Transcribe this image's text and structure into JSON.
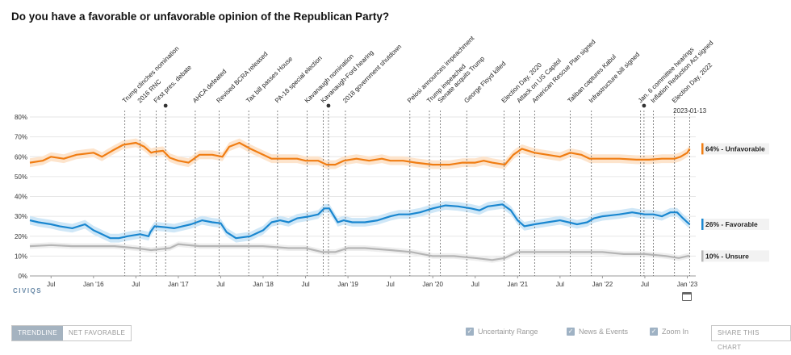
{
  "title": "Do you have a favorable or unfavorable opinion of the Republican Party?",
  "brand": "CIVIQS",
  "controls": {
    "tabs": [
      "TRENDLINE",
      "NET FAVORABLE"
    ],
    "options": [
      "Uncertainty Range",
      "News & Events",
      "Zoom In"
    ],
    "share": "SHARE THIS CHART"
  },
  "chart_data": {
    "type": "line",
    "title": "Do you have a favorable or unfavorable opinion of the Republican Party?",
    "x_range": [
      2015.25,
      2023.1
    ],
    "ylim": [
      0,
      80
    ],
    "y_ticks": [
      "0%",
      "10%",
      "20%",
      "30%",
      "40%",
      "50%",
      "60%",
      "70%",
      "80%"
    ],
    "x_ticks": [
      {
        "label": "Jul",
        "x": 2015.5
      },
      {
        "label": "Jan '16",
        "x": 2016.0
      },
      {
        "label": "Jul",
        "x": 2016.5
      },
      {
        "label": "Jan '17",
        "x": 2017.0
      },
      {
        "label": "Jul",
        "x": 2017.5
      },
      {
        "label": "Jan '18",
        "x": 2018.0
      },
      {
        "label": "Jul",
        "x": 2018.5
      },
      {
        "label": "Jan '19",
        "x": 2019.0
      },
      {
        "label": "Jul",
        "x": 2019.5
      },
      {
        "label": "Jan '20",
        "x": 2020.0
      },
      {
        "label": "Jul",
        "x": 2020.5
      },
      {
        "label": "Jan '21",
        "x": 2021.0
      },
      {
        "label": "Jul",
        "x": 2021.5
      },
      {
        "label": "Jan '22",
        "x": 2022.0
      },
      {
        "label": "Jul",
        "x": 2022.5
      },
      {
        "label": "Jan '23",
        "x": 2023.0
      }
    ],
    "date_label": {
      "x": 2023.03,
      "text": "2023-01-13"
    },
    "series": [
      {
        "name": "Unfavorable",
        "color": "#f07d13",
        "band_color": "#fde4cc",
        "band": 2.2,
        "end_label": "64% - Unfavorable",
        "points": [
          [
            2015.25,
            57
          ],
          [
            2015.4,
            58
          ],
          [
            2015.5,
            60
          ],
          [
            2015.65,
            59
          ],
          [
            2015.8,
            61
          ],
          [
            2016.0,
            62
          ],
          [
            2016.1,
            60
          ],
          [
            2016.22,
            63
          ],
          [
            2016.35,
            66
          ],
          [
            2016.5,
            67
          ],
          [
            2016.6,
            65
          ],
          [
            2016.68,
            62
          ],
          [
            2016.72,
            62.5
          ],
          [
            2016.82,
            63
          ],
          [
            2016.9,
            59.5
          ],
          [
            2017.0,
            58
          ],
          [
            2017.12,
            57
          ],
          [
            2017.25,
            61
          ],
          [
            2017.4,
            61
          ],
          [
            2017.52,
            60
          ],
          [
            2017.6,
            65
          ],
          [
            2017.72,
            67
          ],
          [
            2017.85,
            64
          ],
          [
            2018.0,
            61
          ],
          [
            2018.1,
            59
          ],
          [
            2018.25,
            59
          ],
          [
            2018.4,
            59
          ],
          [
            2018.5,
            58
          ],
          [
            2018.65,
            58
          ],
          [
            2018.75,
            56
          ],
          [
            2018.85,
            56
          ],
          [
            2018.95,
            58
          ],
          [
            2019.1,
            59
          ],
          [
            2019.25,
            58
          ],
          [
            2019.4,
            59
          ],
          [
            2019.5,
            58
          ],
          [
            2019.65,
            58
          ],
          [
            2019.8,
            57
          ],
          [
            2020.0,
            56
          ],
          [
            2020.2,
            56
          ],
          [
            2020.35,
            57
          ],
          [
            2020.5,
            57
          ],
          [
            2020.6,
            58
          ],
          [
            2020.7,
            57
          ],
          [
            2020.85,
            56
          ],
          [
            2020.95,
            61
          ],
          [
            2021.05,
            64
          ],
          [
            2021.2,
            62
          ],
          [
            2021.35,
            61
          ],
          [
            2021.5,
            60
          ],
          [
            2021.62,
            62
          ],
          [
            2021.75,
            61
          ],
          [
            2021.85,
            59
          ],
          [
            2022.0,
            59
          ],
          [
            2022.2,
            59
          ],
          [
            2022.4,
            58.5
          ],
          [
            2022.55,
            58.5
          ],
          [
            2022.7,
            59
          ],
          [
            2022.85,
            59
          ],
          [
            2022.92,
            60
          ],
          [
            2023.0,
            62
          ],
          [
            2023.03,
            64
          ]
        ]
      },
      {
        "name": "Favorable",
        "color": "#1a87d0",
        "band_color": "#cfe7f7",
        "band": 2.2,
        "end_label": "26% - Favorable",
        "points": [
          [
            2015.25,
            28
          ],
          [
            2015.35,
            27
          ],
          [
            2015.5,
            26
          ],
          [
            2015.6,
            25
          ],
          [
            2015.75,
            24
          ],
          [
            2015.9,
            26
          ],
          [
            2016.0,
            23
          ],
          [
            2016.1,
            21
          ],
          [
            2016.2,
            19
          ],
          [
            2016.3,
            19
          ],
          [
            2016.4,
            20
          ],
          [
            2016.55,
            21
          ],
          [
            2016.65,
            20
          ],
          [
            2016.67,
            22
          ],
          [
            2016.72,
            25
          ],
          [
            2016.85,
            24.5
          ],
          [
            2016.95,
            24
          ],
          [
            2017.05,
            25
          ],
          [
            2017.15,
            26
          ],
          [
            2017.28,
            28
          ],
          [
            2017.4,
            27
          ],
          [
            2017.5,
            26.5
          ],
          [
            2017.57,
            22
          ],
          [
            2017.68,
            19
          ],
          [
            2017.85,
            20
          ],
          [
            2018.0,
            23
          ],
          [
            2018.1,
            27
          ],
          [
            2018.2,
            28
          ],
          [
            2018.3,
            27
          ],
          [
            2018.4,
            29
          ],
          [
            2018.55,
            30
          ],
          [
            2018.65,
            31
          ],
          [
            2018.72,
            34
          ],
          [
            2018.78,
            34
          ],
          [
            2018.88,
            27
          ],
          [
            2018.95,
            28
          ],
          [
            2019.05,
            27
          ],
          [
            2019.2,
            27
          ],
          [
            2019.35,
            28
          ],
          [
            2019.5,
            30
          ],
          [
            2019.6,
            31
          ],
          [
            2019.72,
            31
          ],
          [
            2019.85,
            32
          ],
          [
            2020.0,
            34
          ],
          [
            2020.15,
            35.5
          ],
          [
            2020.3,
            35
          ],
          [
            2020.45,
            34
          ],
          [
            2020.55,
            33
          ],
          [
            2020.65,
            35
          ],
          [
            2020.82,
            36
          ],
          [
            2020.92,
            33
          ],
          [
            2021.0,
            28
          ],
          [
            2021.08,
            25
          ],
          [
            2021.2,
            26
          ],
          [
            2021.35,
            27
          ],
          [
            2021.5,
            28
          ],
          [
            2021.6,
            27
          ],
          [
            2021.7,
            26
          ],
          [
            2021.82,
            27
          ],
          [
            2021.9,
            29
          ],
          [
            2022.0,
            30
          ],
          [
            2022.2,
            31
          ],
          [
            2022.35,
            32
          ],
          [
            2022.5,
            31
          ],
          [
            2022.6,
            31
          ],
          [
            2022.7,
            30
          ],
          [
            2022.8,
            32
          ],
          [
            2022.88,
            32
          ],
          [
            2022.95,
            29
          ],
          [
            2023.0,
            27
          ],
          [
            2023.03,
            26
          ]
        ]
      },
      {
        "name": "Unsure",
        "color": "#b5b5b5",
        "band_color": "#eeeeee",
        "band": 1.4,
        "end_label": "10% - Unsure",
        "points": [
          [
            2015.25,
            15
          ],
          [
            2015.5,
            15.5
          ],
          [
            2015.75,
            15
          ],
          [
            2016.0,
            15
          ],
          [
            2016.25,
            15
          ],
          [
            2016.5,
            14
          ],
          [
            2016.68,
            13
          ],
          [
            2016.9,
            14
          ],
          [
            2017.0,
            16
          ],
          [
            2017.25,
            15
          ],
          [
            2017.5,
            15
          ],
          [
            2017.75,
            15
          ],
          [
            2018.0,
            15
          ],
          [
            2018.3,
            14
          ],
          [
            2018.5,
            14
          ],
          [
            2018.7,
            12
          ],
          [
            2018.85,
            12
          ],
          [
            2019.0,
            14
          ],
          [
            2019.2,
            14
          ],
          [
            2019.5,
            13
          ],
          [
            2019.75,
            12
          ],
          [
            2020.0,
            10
          ],
          [
            2020.25,
            10
          ],
          [
            2020.5,
            9
          ],
          [
            2020.7,
            8
          ],
          [
            2020.85,
            9
          ],
          [
            2021.0,
            12
          ],
          [
            2021.25,
            12
          ],
          [
            2021.5,
            12
          ],
          [
            2021.75,
            12
          ],
          [
            2022.0,
            12
          ],
          [
            2022.25,
            11
          ],
          [
            2022.5,
            11
          ],
          [
            2022.75,
            10
          ],
          [
            2022.9,
            9
          ],
          [
            2023.0,
            10
          ],
          [
            2023.03,
            10
          ]
        ]
      }
    ],
    "events": [
      {
        "x": 2016.37,
        "label": "Trump clinches nomination"
      },
      {
        "x": 2016.55,
        "label": "2016 RNC"
      },
      {
        "x": 2016.74,
        "label": "First pres. debate"
      },
      {
        "x": 2016.85,
        "label": "",
        "dot": true
      },
      {
        "x": 2017.2,
        "label": "AHCA defeated"
      },
      {
        "x": 2017.48,
        "label": "Revised BCRA released"
      },
      {
        "x": 2017.83,
        "label": "Tax bill passes House"
      },
      {
        "x": 2018.17,
        "label": "PA-18 special election"
      },
      {
        "x": 2018.52,
        "label": "Kavanaugh nomination"
      },
      {
        "x": 2018.71,
        "label": "Kavanaugh-Ford hearing"
      },
      {
        "x": 2018.77,
        "label": "",
        "dot": true
      },
      {
        "x": 2018.97,
        "label": "2018 government shutdown"
      },
      {
        "x": 2019.73,
        "label": "Pelosi announces impeachment"
      },
      {
        "x": 2019.96,
        "label": "Trump impeached"
      },
      {
        "x": 2020.09,
        "label": "Senate acquits Trump"
      },
      {
        "x": 2020.4,
        "label": "George Floyd killed"
      },
      {
        "x": 2020.84,
        "label": "Election Day, 2020"
      },
      {
        "x": 2021.02,
        "label": "Attack on US Capitol"
      },
      {
        "x": 2021.2,
        "label": "American Rescue Plan signed"
      },
      {
        "x": 2021.62,
        "label": "Taliban captures Kabul"
      },
      {
        "x": 2021.87,
        "label": "Infrastructure bill signed"
      },
      {
        "x": 2022.45,
        "label": "Jan. 6 committee hearings"
      },
      {
        "x": 2022.49,
        "label": "",
        "dot": true
      },
      {
        "x": 2022.6,
        "label": "Inflation Reduction Act signed"
      },
      {
        "x": 2022.85,
        "label": "Election Day, 2022"
      },
      {
        "x": 2023.03,
        "label": ""
      }
    ]
  }
}
